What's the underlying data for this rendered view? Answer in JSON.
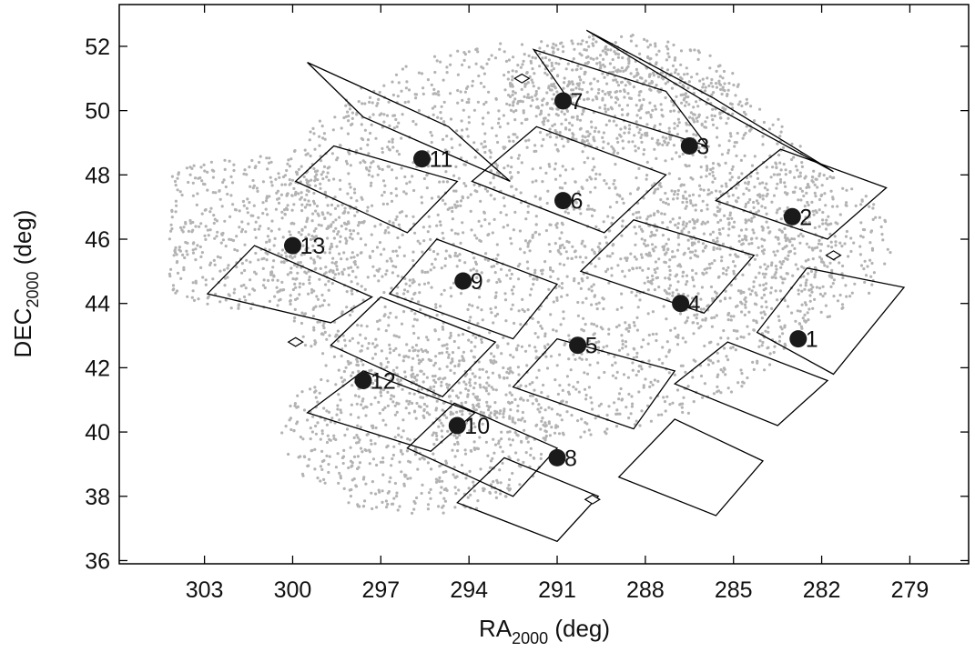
{
  "chart_data": {
    "type": "scatter",
    "xlabel": {
      "main": "RA",
      "sub": "2000",
      "unit": " (deg)"
    },
    "ylabel": {
      "main": "DEC",
      "sub": "2000",
      "unit": " (deg)"
    },
    "xlim": [
      305.9,
      277.0
    ],
    "ylim": [
      35.9,
      53.3
    ],
    "x_reversed": true,
    "xticks": [
      303,
      300,
      297,
      294,
      291,
      288,
      285,
      282,
      279
    ],
    "yticks": [
      36,
      38,
      40,
      42,
      44,
      46,
      48,
      50,
      52
    ],
    "grid": false,
    "colors": {
      "background_points": "#b3b3b3",
      "targets": "#1a1a1a",
      "ccd_outline": "#000000"
    },
    "targets": [
      {
        "label": "1",
        "ra": 282.8,
        "dec": 42.9
      },
      {
        "label": "2",
        "ra": 283.0,
        "dec": 46.7
      },
      {
        "label": "3",
        "ra": 286.5,
        "dec": 48.9
      },
      {
        "label": "4",
        "ra": 286.8,
        "dec": 44.0
      },
      {
        "label": "5",
        "ra": 290.3,
        "dec": 42.7
      },
      {
        "label": "6",
        "ra": 290.8,
        "dec": 47.2
      },
      {
        "label": "7",
        "ra": 290.8,
        "dec": 50.3
      },
      {
        "label": "8",
        "ra": 291.0,
        "dec": 39.2
      },
      {
        "label": "9",
        "ra": 294.2,
        "dec": 44.7
      },
      {
        "label": "10",
        "ra": 294.4,
        "dec": 40.2
      },
      {
        "label": "11",
        "ra": 295.6,
        "dec": 48.5
      },
      {
        "label": "12",
        "ra": 297.6,
        "dec": 41.6
      },
      {
        "label": "13",
        "ra": 300.0,
        "dec": 45.8
      }
    ],
    "ccd_modules": [
      {
        "corners": [
          [
            299.5,
            51.5
          ],
          [
            294.7,
            49.5
          ],
          [
            292.6,
            47.8
          ],
          [
            297.6,
            49.8
          ]
        ]
      },
      {
        "corners": [
          [
            291.7,
            49.5
          ],
          [
            287.3,
            48.0
          ],
          [
            289.4,
            46.2
          ],
          [
            293.9,
            47.8
          ]
        ]
      },
      {
        "corners": [
          [
            290.0,
            52.5
          ],
          [
            285.7,
            50.4
          ],
          [
            281.6,
            48.1
          ],
          [
            286.0,
            50.3
          ]
        ]
      },
      {
        "corners": [
          [
            291.8,
            51.9
          ],
          [
            287.3,
            50.6
          ],
          [
            285.9,
            48.9
          ],
          [
            290.5,
            50.2
          ]
        ]
      },
      {
        "corners": [
          [
            283.4,
            48.8
          ],
          [
            279.8,
            47.6
          ],
          [
            281.8,
            46.0
          ],
          [
            285.6,
            47.2
          ]
        ]
      },
      {
        "corners": [
          [
            298.6,
            48.9
          ],
          [
            294.4,
            47.8
          ],
          [
            296.1,
            46.2
          ],
          [
            299.9,
            47.8
          ]
        ]
      },
      {
        "corners": [
          [
            295.1,
            46.0
          ],
          [
            291.0,
            44.6
          ],
          [
            292.5,
            42.9
          ],
          [
            296.7,
            44.3
          ]
        ]
      },
      {
        "corners": [
          [
            288.4,
            46.6
          ],
          [
            284.3,
            45.5
          ],
          [
            286.0,
            43.7
          ],
          [
            290.2,
            45.0
          ]
        ]
      },
      {
        "corners": [
          [
            301.3,
            45.8
          ],
          [
            297.3,
            44.2
          ],
          [
            298.7,
            43.4
          ],
          [
            302.9,
            44.3
          ]
        ]
      },
      {
        "corners": [
          [
            297.0,
            44.2
          ],
          [
            293.1,
            42.8
          ],
          [
            294.9,
            41.1
          ],
          [
            298.7,
            42.7
          ]
        ]
      },
      {
        "corners": [
          [
            282.5,
            45.1
          ],
          [
            279.2,
            44.5
          ],
          [
            281.6,
            41.8
          ],
          [
            284.2,
            43.1
          ]
        ]
      },
      {
        "corners": [
          [
            291.0,
            42.9
          ],
          [
            287.0,
            41.9
          ],
          [
            288.4,
            40.1
          ],
          [
            292.5,
            41.4
          ]
        ]
      },
      {
        "corners": [
          [
            297.6,
            41.9
          ],
          [
            293.8,
            40.6
          ],
          [
            295.3,
            39.4
          ],
          [
            299.5,
            40.6
          ]
        ]
      },
      {
        "corners": [
          [
            294.5,
            40.9
          ],
          [
            291.0,
            39.5
          ],
          [
            292.5,
            38.0
          ],
          [
            296.1,
            39.5
          ]
        ]
      },
      {
        "corners": [
          [
            285.2,
            42.8
          ],
          [
            281.8,
            41.6
          ],
          [
            283.5,
            40.2
          ],
          [
            287.0,
            41.5
          ]
        ]
      },
      {
        "corners": [
          [
            292.8,
            39.2
          ],
          [
            289.6,
            38.0
          ],
          [
            291.0,
            36.6
          ],
          [
            294.4,
            37.8
          ]
        ]
      },
      {
        "corners": [
          [
            287.0,
            40.4
          ],
          [
            284.0,
            39.1
          ],
          [
            285.6,
            37.4
          ],
          [
            288.9,
            38.6
          ]
        ]
      }
    ],
    "small_markers": [
      {
        "ra": 292.2,
        "dec": 51.0
      },
      {
        "ra": 281.6,
        "dec": 45.5
      },
      {
        "ra": 299.9,
        "dec": 42.8
      },
      {
        "ra": 289.8,
        "dec": 37.9
      }
    ]
  }
}
